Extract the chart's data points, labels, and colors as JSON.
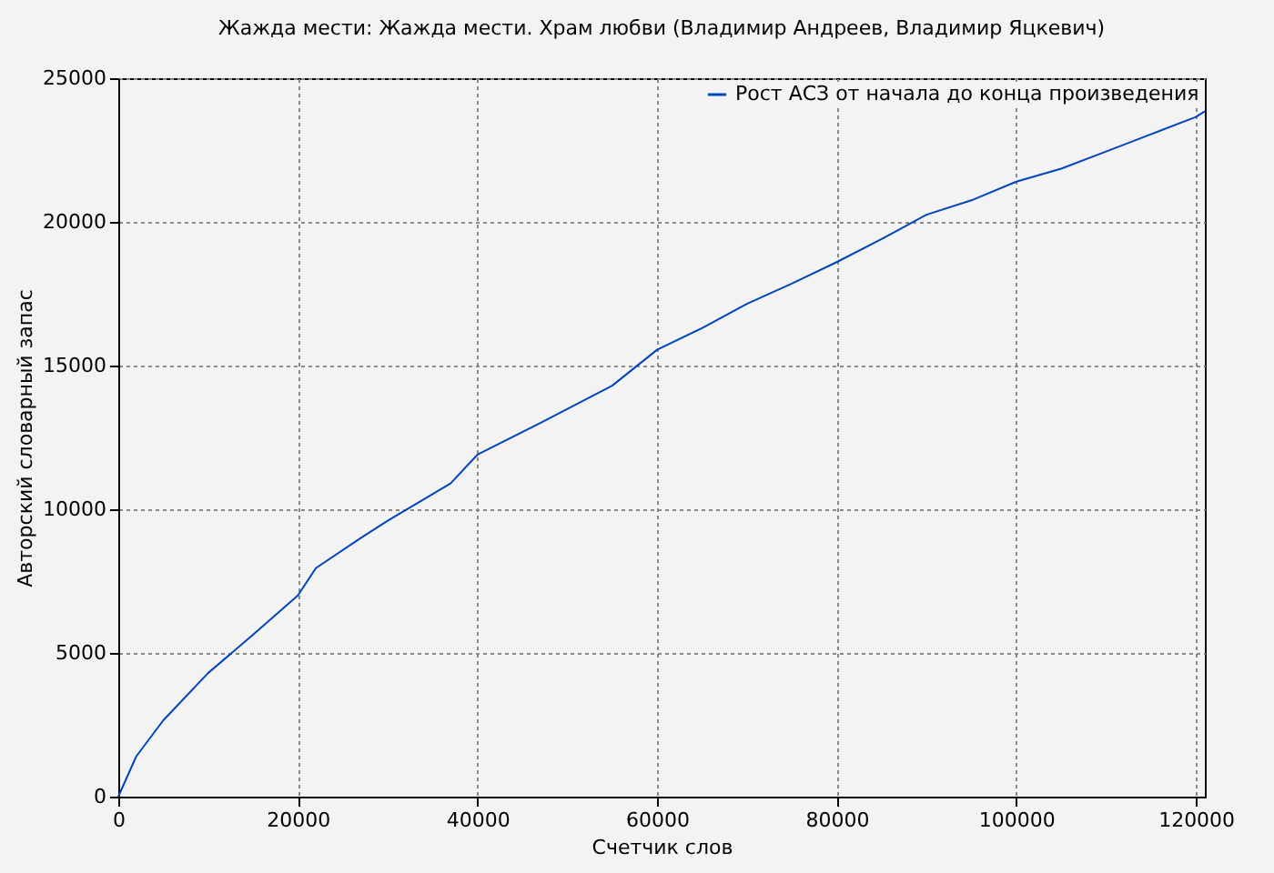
{
  "chart_data": {
    "type": "line",
    "title": "Жажда мести: Жажда мести. Храм любви (Владимир Андреев, Владимир Яцкевич)",
    "xlabel": "Счетчик слов",
    "ylabel": "Авторский словарный запас",
    "x": [
      0,
      2000,
      5000,
      10000,
      15000,
      20000,
      22000,
      27000,
      30000,
      37000,
      40000,
      47000,
      55000,
      60000,
      65000,
      70000,
      75000,
      80000,
      85000,
      90000,
      95000,
      100000,
      105000,
      110000,
      115000,
      120000,
      121000
    ],
    "series": [
      {
        "name": "Рост АСЗ от начала до конца произведения",
        "color": "#0044bb",
        "values": [
          0,
          1400,
          2650,
          4300,
          5630,
          7000,
          7950,
          9000,
          9600,
          10900,
          11900,
          13000,
          14300,
          15550,
          16300,
          17150,
          17850,
          18600,
          19400,
          20250,
          20750,
          21400,
          21850,
          22450,
          23050,
          23650,
          23850
        ]
      }
    ],
    "xlim": [
      0,
      121000
    ],
    "ylim": [
      0,
      25000
    ],
    "xticks": [
      0,
      20000,
      40000,
      60000,
      80000,
      100000,
      120000
    ],
    "yticks": [
      0,
      5000,
      10000,
      15000,
      20000,
      25000
    ],
    "grid": true,
    "legend": "top right",
    "marker": "none",
    "line_style": "solid"
  }
}
